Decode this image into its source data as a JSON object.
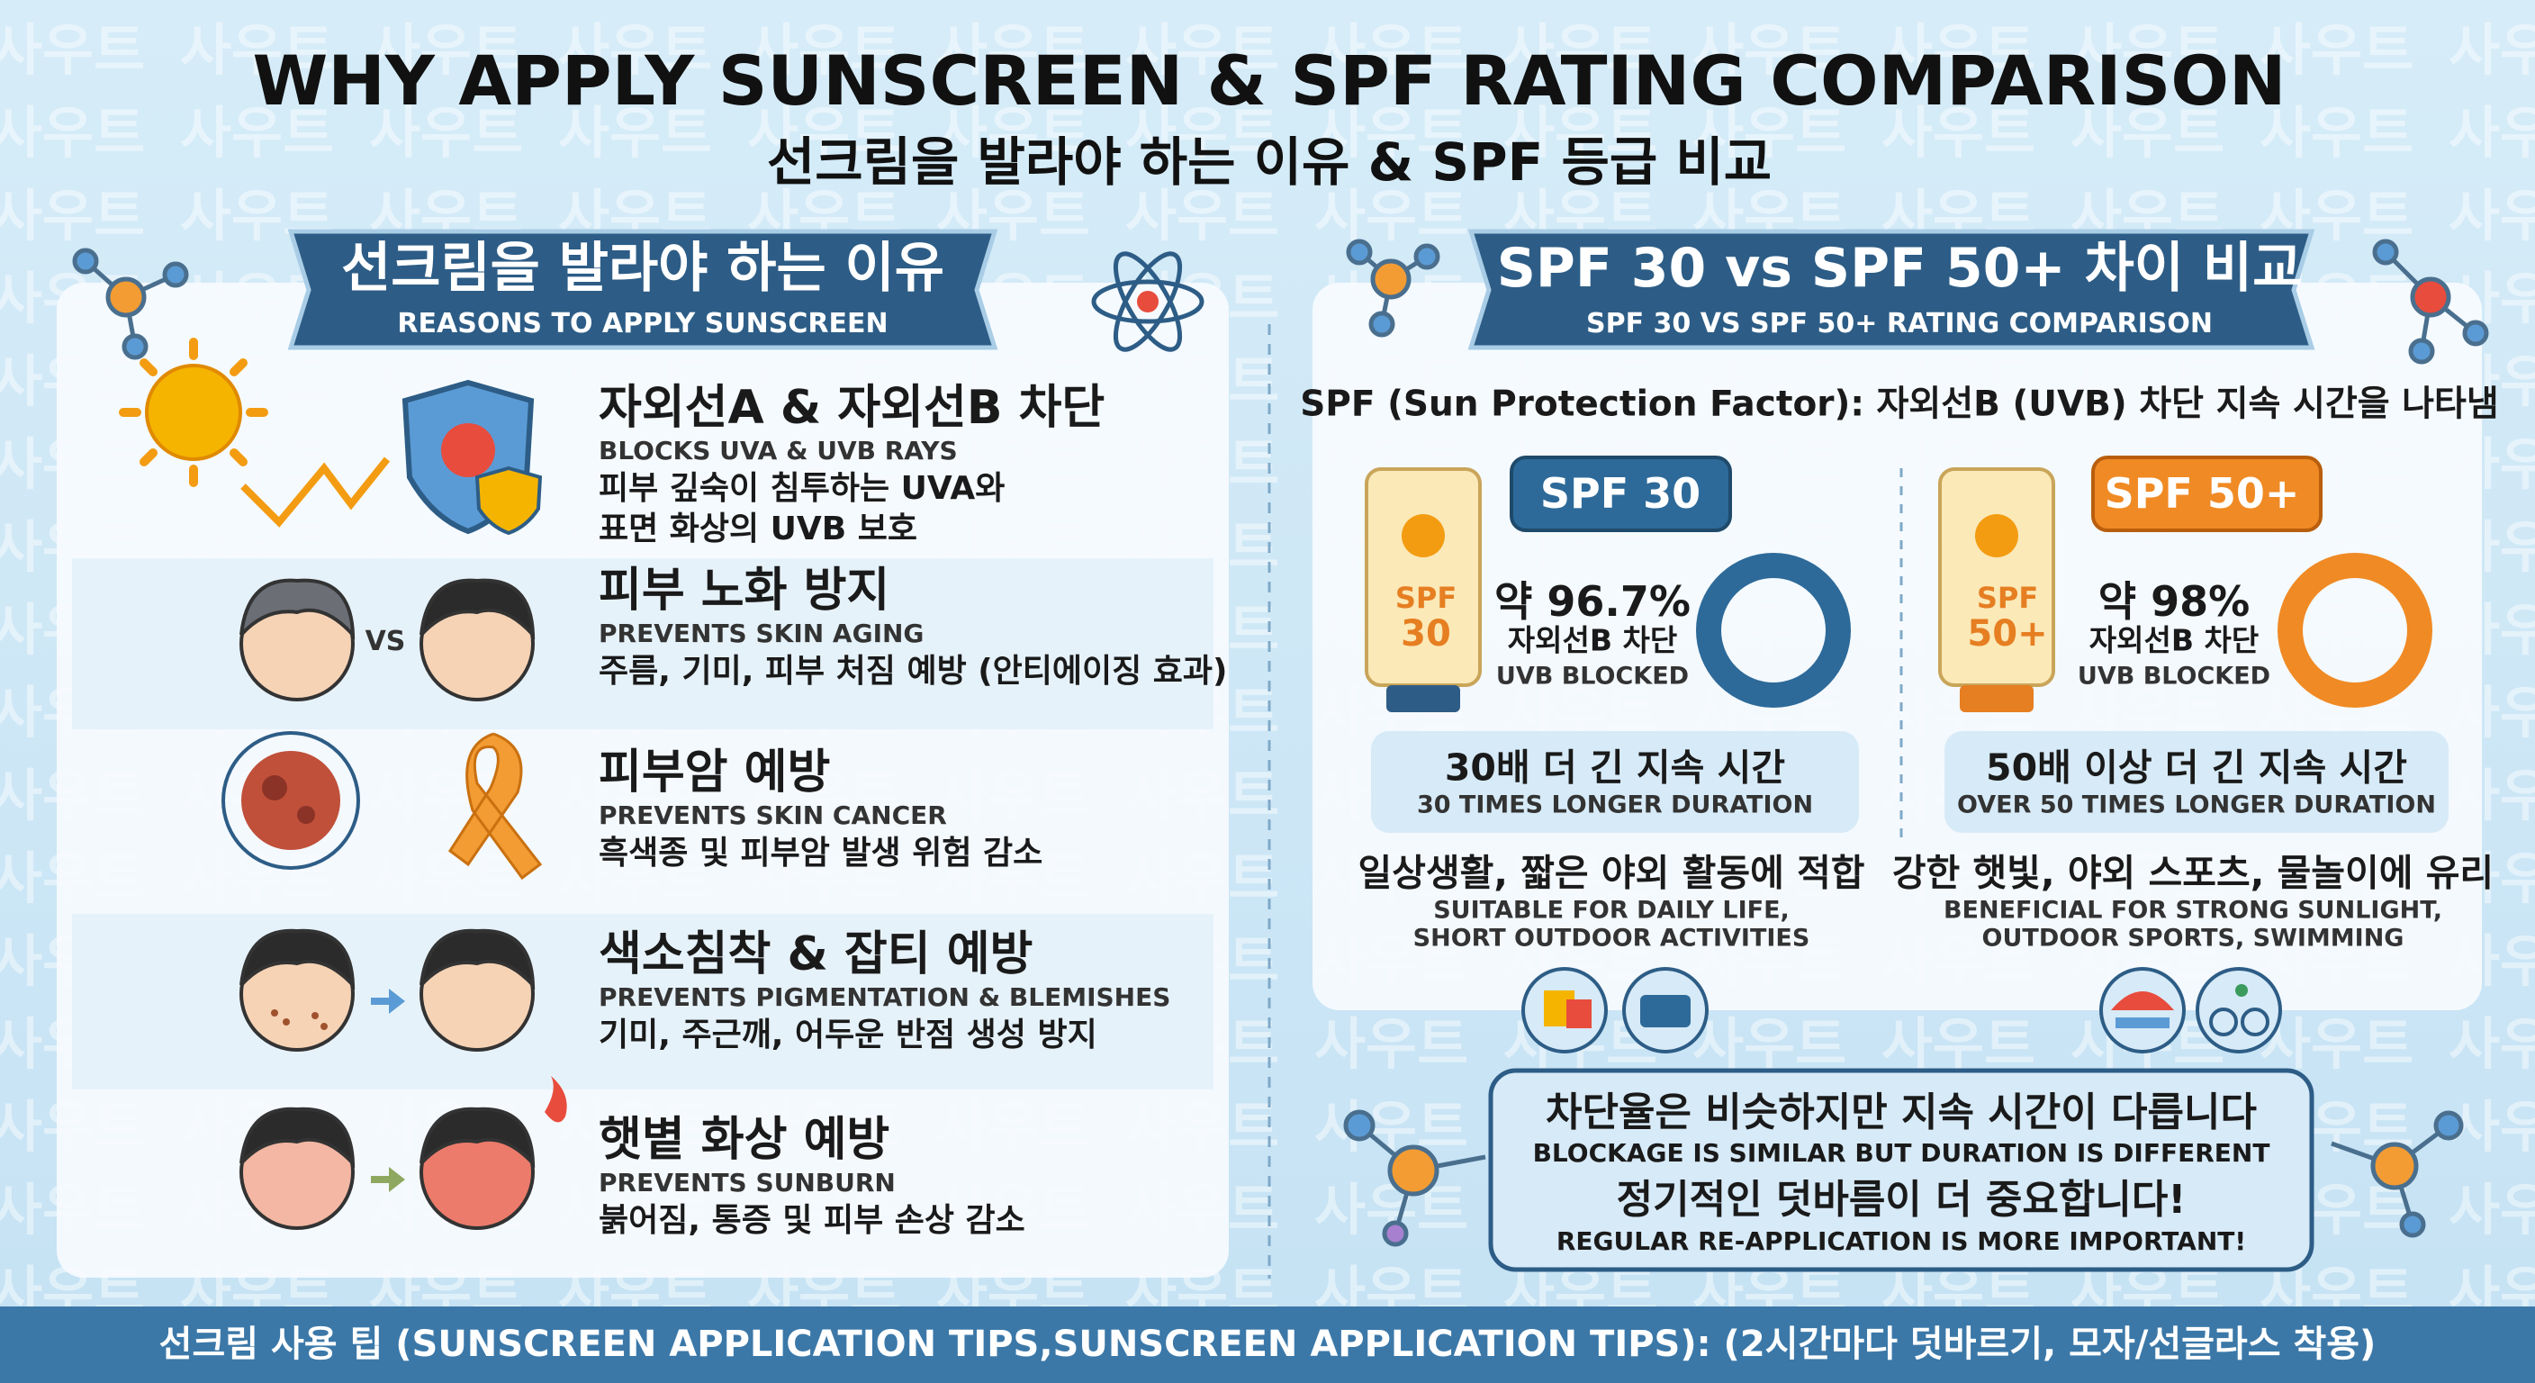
{
  "header": {
    "title": "WHY APPLY SUNSCREEN & SPF RATING COMPARISON",
    "subtitle": "선크림을 발라야 하는 이유 & SPF 등급 비교"
  },
  "watermark": "사우트",
  "reasons": {
    "title": "선크림을 발라야 하는 이유",
    "subtitle": "REASONS TO APPLY SUNSCREEN",
    "compare_label": "VS",
    "items": [
      {
        "title": "자외선A & 자외선B 차단",
        "english": "BLOCKS UVA & UVB RAYS",
        "description": [
          "피부 깊숙이 침투하는 UVA와",
          "표면 화상의 UVB 보호"
        ]
      },
      {
        "title": "피부 노화 방지",
        "english": "PREVENTS SKIN AGING",
        "description": [
          "주름, 기미, 피부 처짐 예방 (안티에이징 효과)"
        ]
      },
      {
        "title": "피부암 예방",
        "english": "PREVENTS SKIN CANCER",
        "description": [
          "흑색종 및 피부암 발생 위험 감소"
        ]
      },
      {
        "title": "색소침착 & 잡티 예방",
        "english": "PREVENTS PIGMENTATION & BLEMISHES",
        "description": [
          "기미, 주근깨, 어두운 반점 생성 방지"
        ]
      },
      {
        "title": "햇볕 화상 예방",
        "english": "PREVENTS SUNBURN",
        "description": [
          "붉어짐, 통증 및 피부 손상 감소"
        ]
      }
    ]
  },
  "comparison": {
    "title": "SPF 30 vs SPF 50+ 차이 비교",
    "subtitle": "SPF 30 VS SPF 50+ RATING COMPARISON",
    "definition": "SPF (Sun Protection Factor): 자외선B (UVB) 차단 지속 시간을 나타냄",
    "products": [
      {
        "tube_label": [
          "SPF",
          "30"
        ],
        "badge": "SPF 30",
        "blocked": "약 96.7%",
        "blocked_ko": "자외선B 차단",
        "blocked_en": "UVB BLOCKED",
        "duration": "30배 더 긴 지속 시간",
        "duration_en": "30 TIMES LONGER DURATION",
        "use": "일상생활, 짧은 야외 활동에 적합",
        "use_en": [
          "SUITABLE FOR DAILY LIFE,",
          "SHORT OUTDOOR ACTIVITIES"
        ]
      },
      {
        "tube_label": [
          "SPF",
          "50+"
        ],
        "badge": "SPF 50+",
        "blocked": "약 98%",
        "blocked_ko": "자외선B 차단",
        "blocked_en": "UVB BLOCKED",
        "duration": "50배 이상 더 긴 지속 시간",
        "duration_en": "OVER 50 TIMES LONGER DURATION",
        "use": "강한 햇빛, 야외 스포츠, 물놀이에 유리",
        "use_en": [
          "BENEFICIAL FOR STRONG SUNLIGHT,",
          "OUTDOOR SPORTS, SWIMMING"
        ]
      }
    ],
    "note": [
      "차단율은 비슷하지만 지속 시간이 다릅니다",
      "BLOCKAGE IS SIMILAR BUT DURATION IS DIFFERENT",
      "정기적인 덧바름이 더 중요합니다!",
      "REGULAR RE-APPLICATION IS MORE IMPORTANT!"
    ]
  },
  "footer": "선크림 사용 팁 (SUNSCREEN APPLICATION TIPS,SUNSCREEN APPLICATION TIPS): (2시간마다 덧바르기, 모자/선글라스 착용)"
}
